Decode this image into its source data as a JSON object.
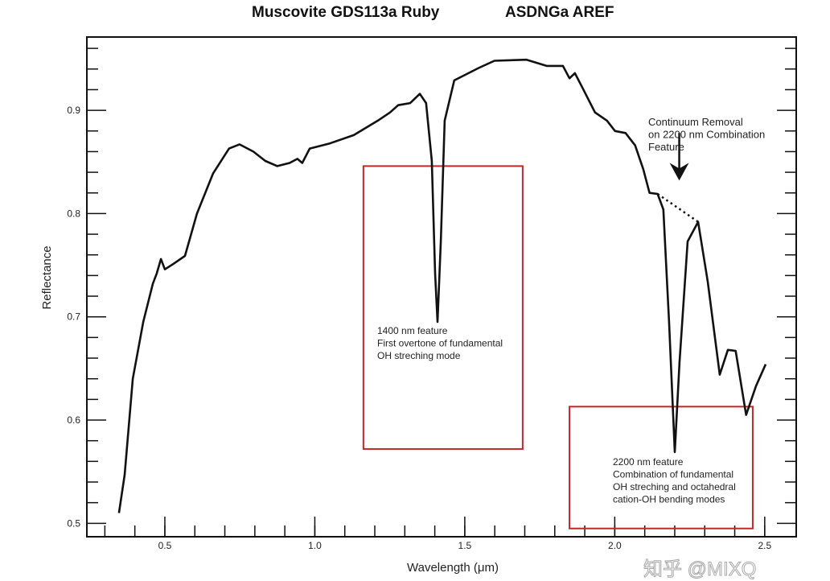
{
  "chart_data": {
    "type": "line",
    "title_left": "Muscovite GDS113a Ruby",
    "title_right": "ASDNGa AREF",
    "xlabel": "Wavelength (μm)",
    "ylabel": "Reflectance",
    "xlim": [
      0.24,
      2.605
    ],
    "ylim": [
      0.487,
      0.971
    ],
    "x_major_ticks": [
      0.5,
      1.0,
      1.5,
      2.0,
      2.5
    ],
    "x_tick_labels": [
      "0.5",
      "1.0",
      "1.5",
      "2.0",
      "2.5"
    ],
    "x_minor_step": 0.1,
    "y_major_ticks": [
      0.5,
      0.6,
      0.7,
      0.8,
      0.9
    ],
    "y_tick_labels": [
      "0.5",
      "0.6",
      "0.7",
      "0.8",
      "0.9"
    ],
    "y_minor_step": 0.02,
    "grid": false,
    "series": [
      {
        "name": "Muscovite GDS113a Ruby",
        "color": "#111111",
        "x": [
          0.347,
          0.366,
          0.393,
          0.428,
          0.46,
          0.473,
          0.487,
          0.5,
          0.527,
          0.567,
          0.607,
          0.661,
          0.714,
          0.749,
          0.795,
          0.835,
          0.875,
          0.916,
          0.942,
          0.958,
          0.983,
          1.05,
          1.13,
          1.21,
          1.251,
          1.278,
          1.318,
          1.35,
          1.371,
          1.39,
          1.401,
          1.409,
          1.42,
          1.433,
          1.465,
          1.546,
          1.599,
          1.706,
          1.773,
          1.827,
          1.849,
          1.867,
          1.894,
          1.934,
          1.974,
          2.001,
          2.036,
          2.068,
          2.095,
          2.116,
          2.143,
          2.162,
          2.181,
          2.2,
          2.216,
          2.243,
          2.278,
          2.31,
          2.35,
          2.377,
          2.403,
          2.438,
          2.471,
          2.503
        ],
        "y": [
          0.51,
          0.547,
          0.64,
          0.695,
          0.732,
          0.742,
          0.756,
          0.746,
          0.751,
          0.759,
          0.8,
          0.839,
          0.863,
          0.867,
          0.86,
          0.851,
          0.846,
          0.849,
          0.853,
          0.849,
          0.863,
          0.868,
          0.876,
          0.89,
          0.898,
          0.905,
          0.907,
          0.916,
          0.907,
          0.851,
          0.742,
          0.695,
          0.773,
          0.89,
          0.929,
          0.941,
          0.948,
          0.949,
          0.943,
          0.943,
          0.931,
          0.936,
          0.921,
          0.898,
          0.89,
          0.88,
          0.878,
          0.866,
          0.843,
          0.82,
          0.819,
          0.804,
          0.695,
          0.569,
          0.656,
          0.773,
          0.792,
          0.734,
          0.644,
          0.668,
          0.667,
          0.605,
          0.633,
          0.654
        ]
      }
    ],
    "continuum_line": {
      "x": [
        2.143,
        2.278
      ],
      "y": [
        0.819,
        0.792
      ],
      "style": "dotted"
    },
    "annotations": [
      {
        "id": "1400",
        "box": {
          "x": [
            1.162,
            1.693
          ],
          "y": [
            0.572,
            0.846
          ]
        },
        "box_color": "#c0282a",
        "lines": [
          "1400 nm feature",
          "First overtone of fundamental",
          "OH streching mode"
        ]
      },
      {
        "id": "2200",
        "box": {
          "x": [
            1.849,
            2.46
          ],
          "y": [
            0.495,
            0.613
          ]
        },
        "box_color": "#c0282a",
        "lines": [
          "2200 nm feature",
          "Combination of fundamental",
          "OH streching and octahedral",
          "cation-OH bending modes"
        ]
      },
      {
        "id": "continuum",
        "lines": [
          "Continuum Removal",
          "on 2200 nm Combination",
          "Feature"
        ],
        "arrow_x": 2.215,
        "arrow_y": [
          0.878,
          0.832
        ]
      }
    ]
  },
  "watermark": "知乎 @MIXQ"
}
